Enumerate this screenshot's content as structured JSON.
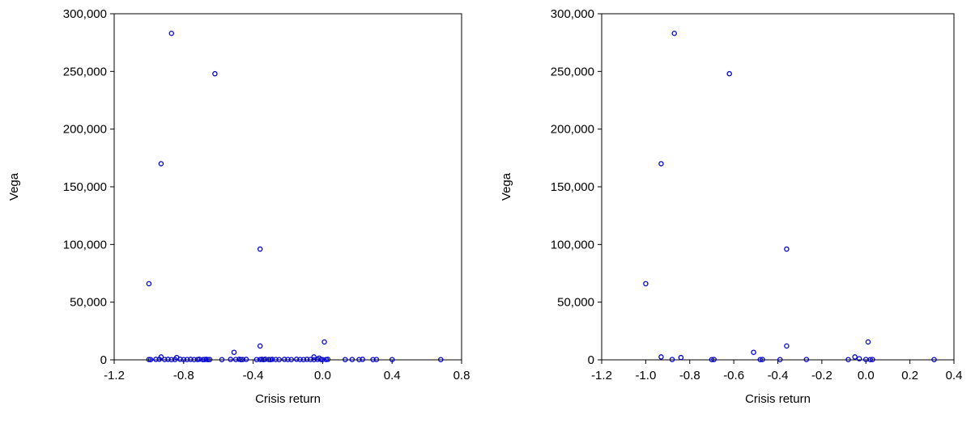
{
  "chart_data": [
    {
      "type": "scatter",
      "xlabel": "Crisis return",
      "ylabel": "Vega",
      "xlim": [
        -1.2,
        0.8
      ],
      "ylim": [
        0,
        300000
      ],
      "xticks": [
        -1.2,
        -0.8,
        -0.4,
        0.0,
        0.4,
        0.8
      ],
      "xtick_labels": [
        "-1.2",
        "-0.8",
        "-0.4",
        "0.0",
        "0.4",
        "0.8"
      ],
      "yticks": [
        0,
        50000,
        100000,
        150000,
        200000,
        250000,
        300000
      ],
      "ytick_labels": [
        "0",
        "50,000",
        "100,000",
        "150,000",
        "200,000",
        "250,000",
        "300,000"
      ],
      "marker_color": "#0000cc",
      "points": [
        [
          -0.87,
          283000
        ],
        [
          -0.62,
          248000
        ],
        [
          -0.93,
          170000
        ],
        [
          -0.36,
          96000
        ],
        [
          -1.0,
          66000
        ],
        [
          -0.36,
          12000
        ],
        [
          0.01,
          15500
        ],
        [
          -0.51,
          6500
        ],
        [
          -0.93,
          2500
        ],
        [
          -0.84,
          2000
        ],
        [
          -0.05,
          2500
        ],
        [
          -0.02,
          1500
        ],
        [
          -1.0,
          300
        ],
        [
          -0.99,
          200
        ],
        [
          -0.96,
          400
        ],
        [
          -0.94,
          500
        ],
        [
          -0.91,
          300
        ],
        [
          -0.89,
          400
        ],
        [
          -0.87,
          200
        ],
        [
          -0.85,
          300
        ],
        [
          -0.82,
          500
        ],
        [
          -0.8,
          200
        ],
        [
          -0.78,
          300
        ],
        [
          -0.76,
          400
        ],
        [
          -0.74,
          200
        ],
        [
          -0.72,
          300
        ],
        [
          -0.71,
          500
        ],
        [
          -0.69,
          200
        ],
        [
          -0.68,
          300
        ],
        [
          -0.67,
          400
        ],
        [
          -0.66,
          200
        ],
        [
          -0.65,
          300
        ],
        [
          -0.58,
          200
        ],
        [
          -0.53,
          400
        ],
        [
          -0.5,
          300
        ],
        [
          -0.48,
          500
        ],
        [
          -0.47,
          200
        ],
        [
          -0.46,
          300
        ],
        [
          -0.44,
          400
        ],
        [
          -0.38,
          200
        ],
        [
          -0.36,
          300
        ],
        [
          -0.35,
          400
        ],
        [
          -0.34,
          200
        ],
        [
          -0.33,
          500
        ],
        [
          -0.31,
          300
        ],
        [
          -0.3,
          200
        ],
        [
          -0.29,
          400
        ],
        [
          -0.27,
          300
        ],
        [
          -0.25,
          200
        ],
        [
          -0.22,
          400
        ],
        [
          -0.2,
          300
        ],
        [
          -0.18,
          200
        ],
        [
          -0.15,
          500
        ],
        [
          -0.13,
          300
        ],
        [
          -0.11,
          200
        ],
        [
          -0.09,
          400
        ],
        [
          -0.07,
          300
        ],
        [
          -0.05,
          200
        ],
        [
          -0.03,
          400
        ],
        [
          -0.01,
          300
        ],
        [
          0.0,
          200
        ],
        [
          0.02,
          300
        ],
        [
          0.03,
          400
        ],
        [
          0.13,
          200
        ],
        [
          0.17,
          300
        ],
        [
          0.21,
          200
        ],
        [
          0.23,
          400
        ],
        [
          0.29,
          200
        ],
        [
          0.31,
          300
        ],
        [
          0.4,
          200
        ],
        [
          0.68,
          200
        ]
      ]
    },
    {
      "type": "scatter",
      "xlabel": "Crisis return",
      "ylabel": "Vega",
      "xlim": [
        -1.2,
        0.4
      ],
      "ylim": [
        0,
        300000
      ],
      "xticks": [
        -1.2,
        -1.0,
        -0.8,
        -0.6,
        -0.4,
        -0.2,
        0.0,
        0.2,
        0.4
      ],
      "xtick_labels": [
        "-1.2",
        "-1.0",
        "-0.8",
        "-0.6",
        "-0.4",
        "-0.2",
        "0.0",
        "0.2",
        "0.4"
      ],
      "yticks": [
        0,
        50000,
        100000,
        150000,
        200000,
        250000,
        300000
      ],
      "ytick_labels": [
        "0",
        "50,000",
        "100,000",
        "150,000",
        "200,000",
        "250,000",
        "300,000"
      ],
      "marker_color": "#0000cc",
      "points": [
        [
          -0.87,
          283000
        ],
        [
          -0.62,
          248000
        ],
        [
          -0.93,
          170000
        ],
        [
          -0.36,
          96000
        ],
        [
          -1.0,
          66000
        ],
        [
          -0.36,
          12000
        ],
        [
          0.01,
          15500
        ],
        [
          -0.51,
          6500
        ],
        [
          -0.93,
          2500
        ],
        [
          -0.84,
          2000
        ],
        [
          -0.05,
          2500
        ],
        [
          -0.03,
          1000
        ],
        [
          -0.88,
          300
        ],
        [
          -0.7,
          200
        ],
        [
          -0.69,
          300
        ],
        [
          -0.48,
          200
        ],
        [
          -0.47,
          300
        ],
        [
          -0.39,
          200
        ],
        [
          -0.27,
          300
        ],
        [
          -0.08,
          200
        ],
        [
          0.0,
          300
        ],
        [
          0.02,
          200
        ],
        [
          0.03,
          300
        ],
        [
          0.31,
          200
        ]
      ]
    }
  ]
}
